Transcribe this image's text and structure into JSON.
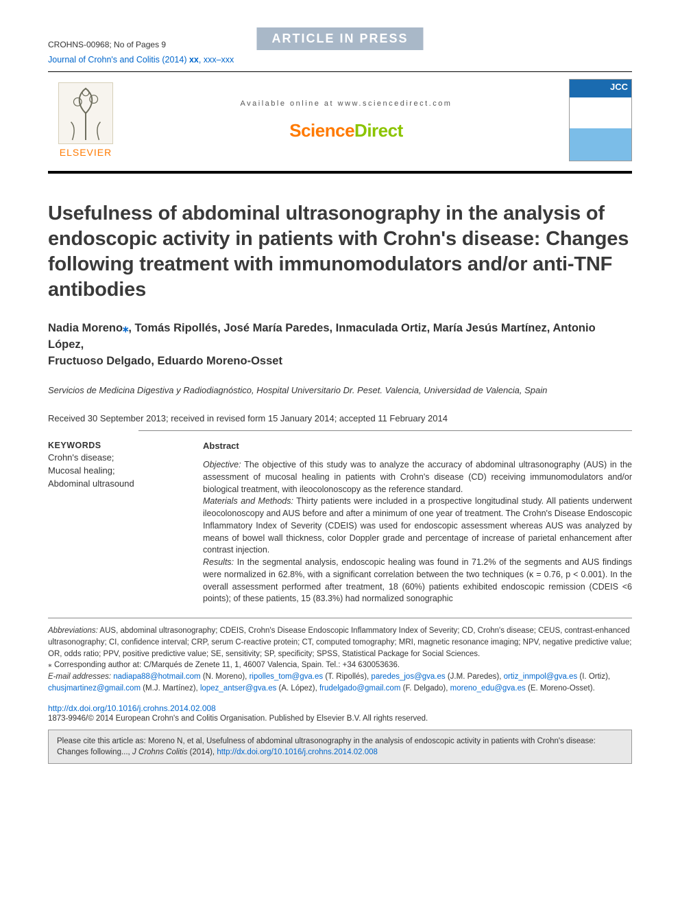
{
  "colors": {
    "link": "#0066cc",
    "banner_bg": "#a9b8c8",
    "banner_text": "#ffffff",
    "sd_orange": "#ff7a00",
    "sd_green": "#8bc400",
    "text": "#333333",
    "rule": "#000000",
    "rule_thin": "#888888",
    "cite_bg": "#e8e8e8"
  },
  "fonts": {
    "base_family": "Arial, Helvetica, sans-serif",
    "title_size_pt": 22,
    "authors_size_pt": 12.5,
    "body_size_pt": 9.5,
    "foot_size_pt": 8.5
  },
  "header": {
    "press_banner": "ARTICLE IN PRESS",
    "article_id": "CROHNS-00968; No of Pages 9",
    "journal_line_prefix": "Journal of Crohn's and Colitis (2014) ",
    "journal_line_vol": "xx",
    "journal_line_pages": ", xxx–xxx",
    "available_online": "Available online at www.sciencedirect.com",
    "sciencedirect_word1": "Science",
    "sciencedirect_word2": "Direct",
    "elsevier_label": "ELSEVIER",
    "cover_initials": "JCC"
  },
  "article": {
    "title": "Usefulness of abdominal ultrasonography in the analysis of endoscopic activity in patients with Crohn's disease: Changes following treatment with immunomodulators and/or anti-TNF antibodies",
    "authors_line1": "Nadia Moreno",
    "authors_rest1": ", Tomás Ripollés, José María Paredes, Inmaculada Ortiz, María Jesús Martínez, Antonio López,",
    "authors_line2": "Fructuoso Delgado, Eduardo Moreno-Osset",
    "affiliation": "Servicios de Medicina Digestiva y Radiodiagnóstico, Hospital Universitario Dr. Peset. Valencia, Universidad de Valencia, Spain",
    "dates": "Received 30 September 2013; received in revised form 15 January 2014; accepted 11 February 2014"
  },
  "keywords": {
    "heading": "KEYWORDS",
    "items": "Crohn's disease;\nMucosal healing;\nAbdominal ultrasound"
  },
  "abstract": {
    "heading": "Abstract",
    "objective_lead": "Objective:",
    "objective": " The objective of this study was to analyze the accuracy of abdominal ultrasonography (AUS) in the assessment of mucosal healing in patients with Crohn's disease (CD) receiving immunomodulators and/or biological treatment, with ileocolonoscopy as the reference standard.",
    "methods_lead": "Materials and Methods:",
    "methods": " Thirty patients were included in a prospective longitudinal study. All patients underwent ileocolonoscopy and AUS before and after a minimum of one year of treatment. The Crohn's Disease Endoscopic Inflammatory Index of Severity (CDEIS) was used for endoscopic assessment whereas AUS was analyzed by means of bowel wall thickness, color Doppler grade and percentage of increase of parietal enhancement after contrast injection.",
    "results_lead": "Results:",
    "results": " In the segmental analysis, endoscopic healing was found in 71.2% of the segments and AUS findings were normalized in 62.8%, with a significant correlation between the two techniques (κ = 0.76, p < 0.001). In the overall assessment performed after treatment, 18 (60%) patients exhibited endoscopic remission (CDEIS <6 points); of these patients, 15 (83.3%) had normalized sonographic"
  },
  "footnotes": {
    "abbr_lead": "Abbreviations:",
    "abbr": " AUS, abdominal ultrasonography; CDEIS, Crohn's Disease Endoscopic Inflammatory Index of Severity; CD, Crohn's disease; CEUS, contrast-enhanced ultrasonography; CI, confidence interval; CRP, serum C-reactive protein; CT, computed tomography; MRI, magnetic resonance imaging; NPV, negative predictive value; OR, odds ratio; PPV, positive predictive value; SE, sensitivity; SP, specificity; SPSS, Statistical Package for Social Sciences.",
    "corr_lead": "⁎ Corresponding author at: ",
    "corr": "C/Marqués de Zenete 11, 1, 46007 Valencia, Spain. Tel.: +34 630053636.",
    "email_lead": "E-mail addresses: ",
    "emails": [
      {
        "addr": "nadiapa88@hotmail.com",
        "who": " (N. Moreno), "
      },
      {
        "addr": "ripolles_tom@gva.es",
        "who": " (T. Ripollés), "
      },
      {
        "addr": "paredes_jos@gva.es",
        "who": " (J.M. Paredes), "
      },
      {
        "addr": "ortiz_inmpol@gva.es",
        "who": " (I. Ortiz), "
      },
      {
        "addr": "chusjmartinez@gmail.com",
        "who": " (M.J. Martínez), "
      },
      {
        "addr": "lopez_antser@gva.es",
        "who": " (A. López), "
      },
      {
        "addr": "frudelgado@gmail.com",
        "who": " (F. Delgado), "
      },
      {
        "addr": "moreno_edu@gva.es",
        "who": " (E. Moreno-Osset)."
      }
    ]
  },
  "doi": {
    "url": "http://dx.doi.org/10.1016/j.crohns.2014.02.008",
    "copyright": "1873-9946/© 2014 European Crohn's and Colitis Organisation. Published by Elsevier B.V. All rights reserved."
  },
  "citebox": {
    "text_pre": "Please cite this article as: Moreno N, et al, Usefulness of abdominal ultrasonography in the analysis of endoscopic activity in patients with Crohn's disease: Changes following..., ",
    "journal_ital": "J Crohns Colitis",
    "text_mid": " (2014), ",
    "link": "http://dx.doi.org/10.1016/j.crohns.2014.02.008"
  }
}
